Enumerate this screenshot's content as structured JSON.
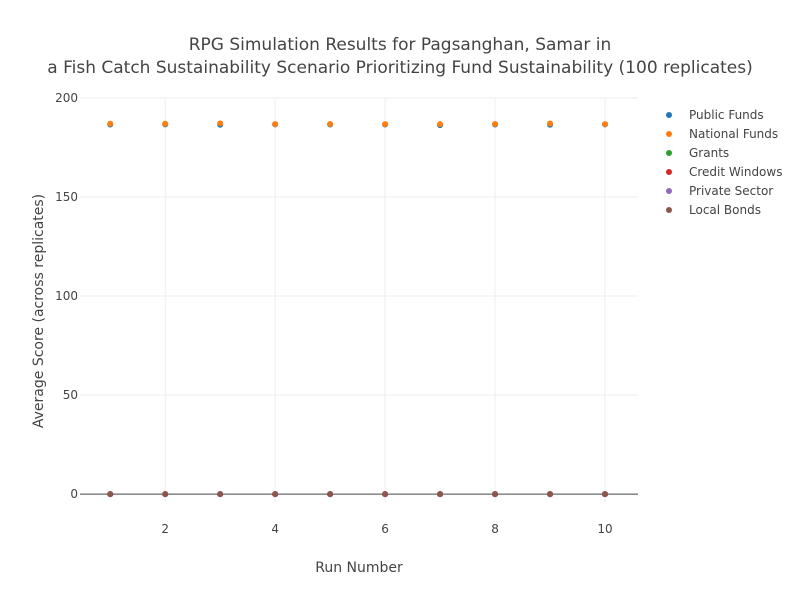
{
  "chart_data": {
    "type": "scatter",
    "title_lines": [
      "RPG Simulation Results for Pagsanghan, Samar in",
      "a Fish Catch Sustainability Scenario Prioritizing Fund Sustainability (100 replicates)"
    ],
    "xlabel": "Run Number",
    "ylabel": "Average Score (across replicates)",
    "xlim": [
      0.45,
      10.6
    ],
    "ylim": [
      -4,
      200
    ],
    "xticks": [
      2,
      4,
      6,
      8,
      10
    ],
    "yticks": [
      0,
      50,
      100,
      150,
      200
    ],
    "grid": true,
    "legend_position": "right",
    "x": [
      1,
      2,
      3,
      4,
      5,
      6,
      7,
      8,
      9,
      10
    ],
    "series": [
      {
        "name": "Public Funds",
        "color": "#1f77b4",
        "values": [
          186.6,
          186.7,
          186.5,
          186.7,
          186.6,
          186.6,
          186.3,
          186.6,
          186.5,
          186.7
        ]
      },
      {
        "name": "National Funds",
        "color": "#ff7f0e",
        "values": [
          187.0,
          187.0,
          187.2,
          186.8,
          186.9,
          186.8,
          186.8,
          186.9,
          187.1,
          186.8
        ]
      },
      {
        "name": "Grants",
        "color": "#2ca02c",
        "values": [
          0,
          0,
          0,
          0,
          0,
          0,
          0,
          0,
          0,
          0
        ]
      },
      {
        "name": "Credit Windows",
        "color": "#d62728",
        "values": [
          0,
          0,
          0,
          0,
          0,
          0,
          0,
          0,
          0,
          0
        ]
      },
      {
        "name": "Private Sector",
        "color": "#9467bd",
        "values": [
          0,
          0,
          0,
          0,
          0,
          0,
          0,
          0,
          0,
          0
        ]
      },
      {
        "name": "Local Bonds",
        "color": "#8c564b",
        "values": [
          0,
          0,
          0,
          0,
          0,
          0,
          0,
          0,
          0,
          0
        ]
      }
    ]
  }
}
